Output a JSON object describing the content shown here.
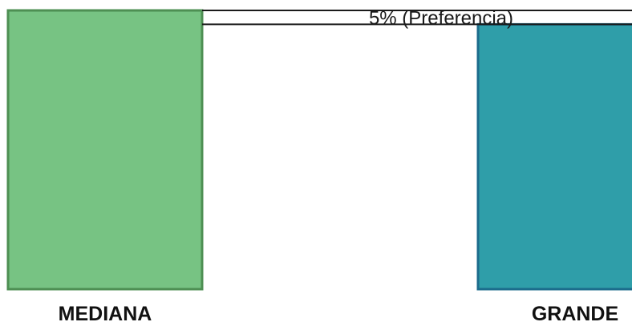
{
  "chart_data": {
    "type": "bar",
    "categories": [
      "MEDIANA",
      "GRANDE"
    ],
    "values": [
      100,
      95
    ],
    "colors": [
      {
        "fill": "#77c383",
        "stroke": "#4e8f53"
      },
      {
        "fill": "#2f9ea9",
        "stroke": "#1c6c8c"
      }
    ],
    "annotation": {
      "text": "5% (Preferencia)",
      "from": 100,
      "to": 95
    },
    "ylim": [
      0,
      100
    ],
    "grid": false,
    "legend": "none"
  }
}
